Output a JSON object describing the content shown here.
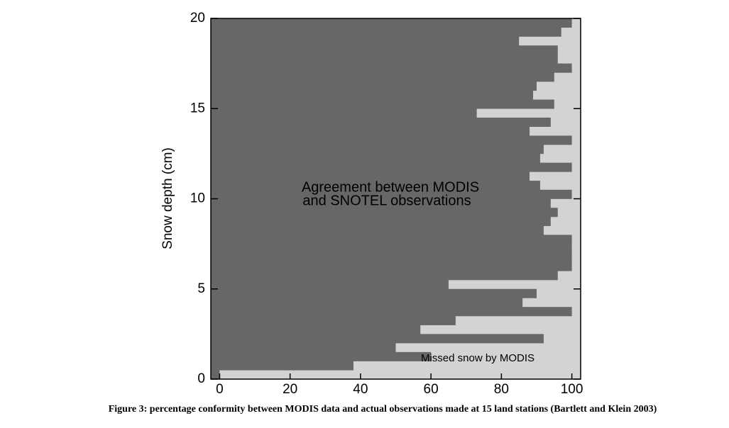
{
  "chart_data": {
    "type": "histogram",
    "orientation": "horizontal",
    "ylabel": "Snow depth (cm)",
    "annotations": [
      "Agreement between MODIS",
      "and SNOTEL observations",
      "Missed snow by MODIS"
    ],
    "caption": "Figure 3: percentage conformity between MODIS data and actual observations made at 15 land stations (Bartlett and Klein 2003)",
    "bins": [
      0,
      0.5,
      1,
      1.5,
      2,
      2.5,
      3,
      3.5,
      4,
      4.5,
      5,
      5.5,
      6,
      6.5,
      7,
      7.5,
      8,
      8.5,
      9,
      9.5,
      10,
      10.5,
      11,
      11.5,
      12,
      12.5,
      13,
      13.5,
      14,
      14.5,
      15,
      15.5,
      16,
      16.5,
      17,
      17.5,
      18,
      18.5,
      19,
      19.5,
      20
    ],
    "values": [
      0,
      38,
      60,
      50,
      92,
      57,
      67,
      100,
      86,
      90,
      65,
      96,
      100,
      100,
      100,
      100,
      92,
      94,
      96,
      94,
      100,
      91,
      88,
      100,
      91,
      92,
      100,
      88,
      94,
      73,
      95,
      89,
      90,
      95,
      100,
      96,
      96,
      85,
      97,
      100
    ],
    "color": "#676767",
    "background_color": "#d3d3d3",
    "xlim": [
      -2.5,
      102.5
    ],
    "xticks": [
      0,
      20,
      40,
      60,
      80,
      100
    ],
    "ylim": [
      0,
      20
    ],
    "yticks": [
      0,
      5,
      10,
      15,
      20
    ]
  }
}
